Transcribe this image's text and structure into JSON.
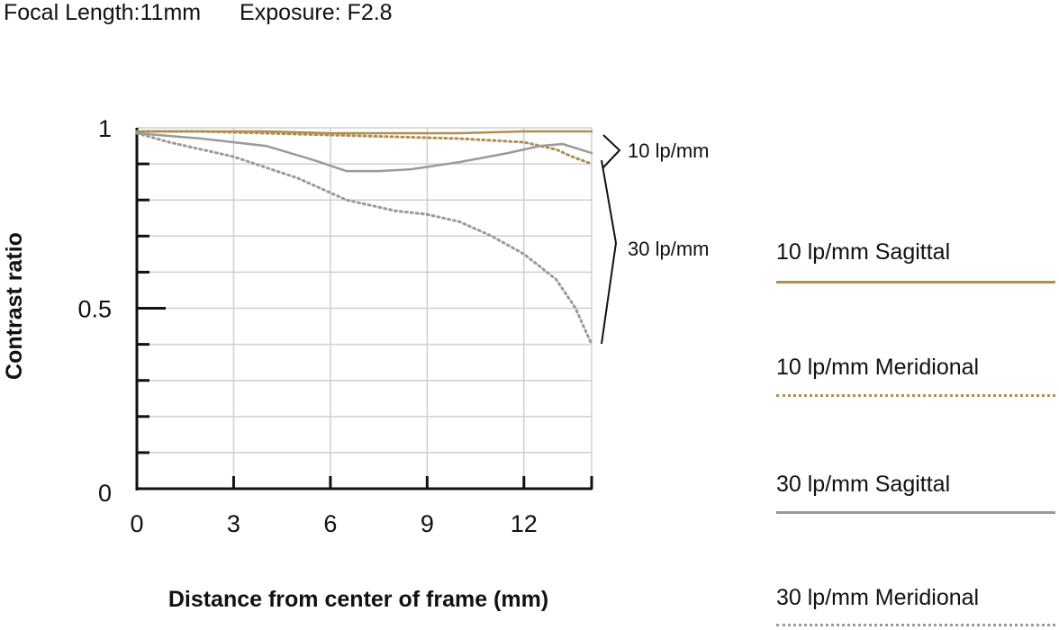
{
  "header": {
    "focal_length": "Focal Length:11mm",
    "exposure": "Exposure: F2.8"
  },
  "colors": {
    "s10": "#b08f4e",
    "m10": "#b08f4e",
    "s30": "#9a9a9a",
    "m30": "#9a9a9a",
    "grid": "#cfcfcf",
    "axis": "#111111"
  },
  "chart_data": {
    "type": "line",
    "xlabel": "Distance from center of frame (mm)",
    "ylabel": "Contrast ratio",
    "xlim": [
      0,
      14.1
    ],
    "ylim": [
      0,
      1
    ],
    "x_ticks": [
      "0",
      "3",
      "6",
      "9",
      "12"
    ],
    "y_ticks": [
      "1",
      "0.5",
      "0"
    ],
    "grid": true,
    "brackets": [
      "10 lp/mm",
      "30 lp/mm"
    ],
    "series": [
      {
        "name": "10 lp/mm Sagittal",
        "style": "solid",
        "x": [
          0,
          2,
          4,
          6,
          8,
          10,
          12,
          14.1
        ],
        "y": [
          0.99,
          0.99,
          0.99,
          0.985,
          0.985,
          0.985,
          0.99,
          0.99
        ]
      },
      {
        "name": "10 lp/mm Meridional",
        "style": "dotted",
        "x": [
          0,
          2,
          4,
          6,
          8,
          10,
          12,
          13,
          13.5,
          14.1
        ],
        "y": [
          0.99,
          0.99,
          0.985,
          0.98,
          0.975,
          0.97,
          0.96,
          0.94,
          0.92,
          0.9
        ]
      },
      {
        "name": "30 lp/mm Sagittal",
        "style": "solid",
        "x": [
          0,
          2,
          4,
          5.5,
          6.5,
          7.5,
          8.5,
          10,
          11.5,
          12.5,
          13.2,
          14.1
        ],
        "y": [
          0.985,
          0.97,
          0.95,
          0.91,
          0.88,
          0.88,
          0.885,
          0.905,
          0.93,
          0.95,
          0.955,
          0.93
        ]
      },
      {
        "name": "30 lp/mm Meridional",
        "style": "dotted",
        "x": [
          0,
          1,
          3,
          5,
          6.5,
          8,
          9,
          10,
          11,
          12,
          13,
          13.6,
          14.1
        ],
        "y": [
          0.985,
          0.96,
          0.92,
          0.86,
          0.8,
          0.77,
          0.76,
          0.74,
          0.7,
          0.65,
          0.58,
          0.5,
          0.4
        ]
      }
    ]
  }
}
